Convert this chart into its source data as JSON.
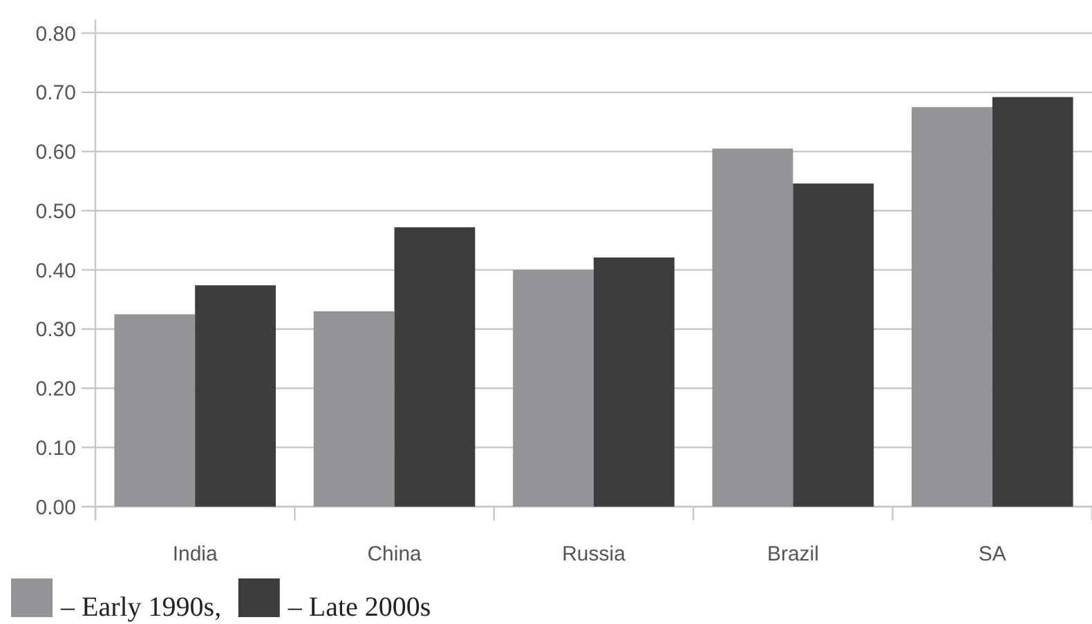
{
  "chart_data": {
    "type": "bar",
    "categories": [
      "India",
      "China",
      "Russia",
      "Brazil",
      "SA"
    ],
    "series": [
      {
        "name": "– Early 1990s,",
        "color": "#939497",
        "values": [
          0.325,
          0.33,
          0.4,
          0.605,
          0.675
        ]
      },
      {
        "name": "– Late 2000s",
        "color": "#3d3d3d",
        "values": [
          0.374,
          0.472,
          0.421,
          0.546,
          0.692
        ]
      }
    ],
    "ylim": [
      0,
      0.8
    ],
    "yticks": [
      {
        "value": 0,
        "label": "0.00"
      },
      {
        "value": 0.1,
        "label": "0.10"
      },
      {
        "value": 0.2,
        "label": "0.20"
      },
      {
        "value": 0.3,
        "label": "0.30"
      },
      {
        "value": 0.4,
        "label": "0.40"
      },
      {
        "value": 0.5,
        "label": "0.50"
      },
      {
        "value": 0.6,
        "label": "0.60"
      },
      {
        "value": 0.7,
        "label": "0.70"
      },
      {
        "value": 0.8,
        "label": "0.80"
      }
    ],
    "grid": "y",
    "legend": "bottom left"
  }
}
